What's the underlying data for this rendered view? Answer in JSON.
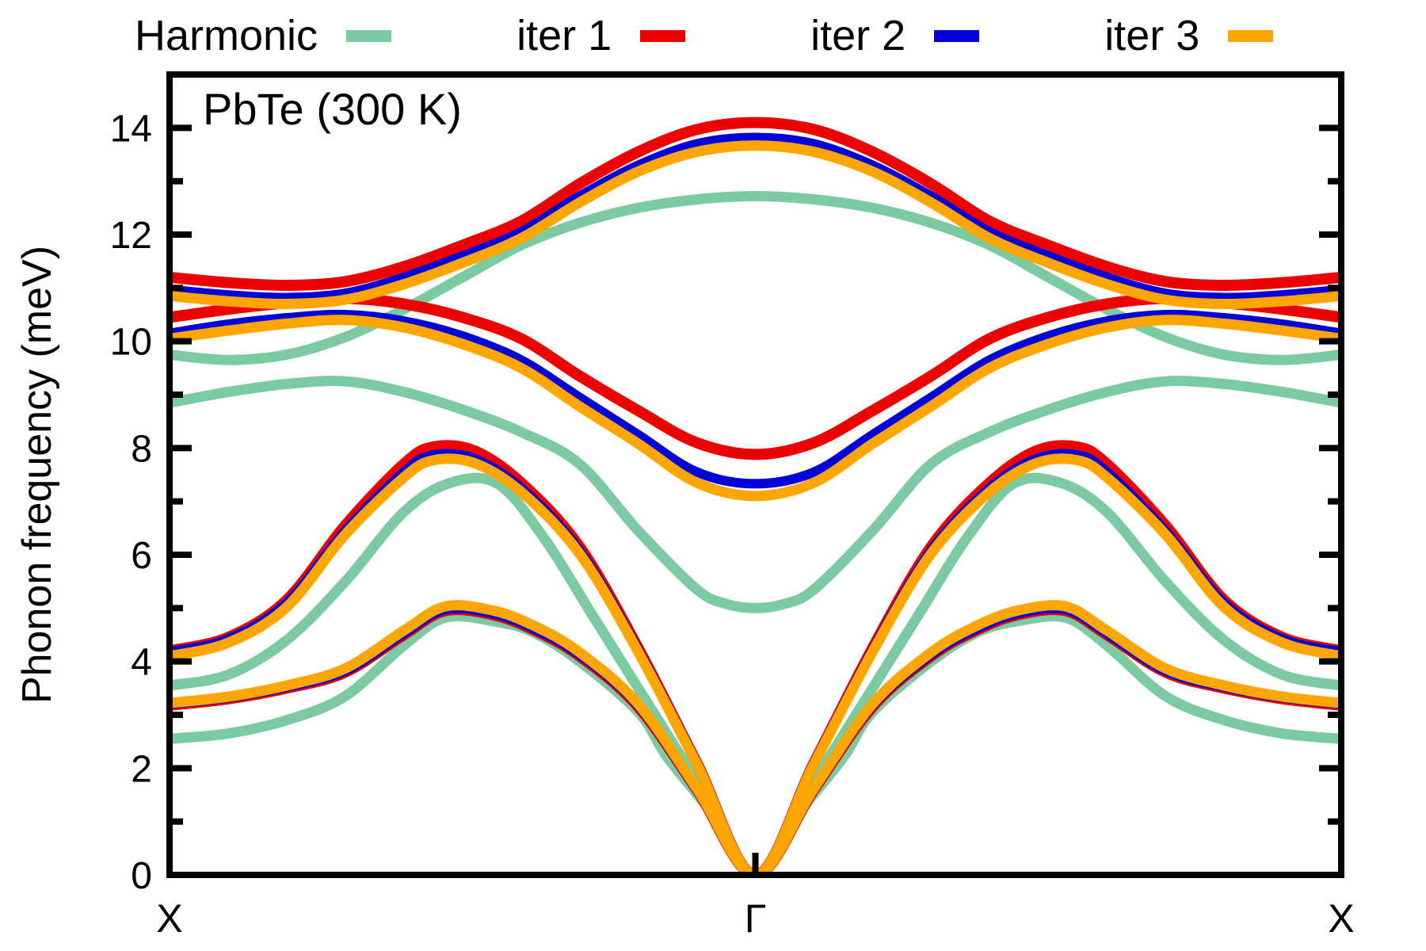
{
  "title": "PbTe (300 K)",
  "legend": {
    "items": [
      {
        "label": "Harmonic",
        "color": "#7ccaa1"
      },
      {
        "label": "iter 1",
        "color": "#ee0000"
      },
      {
        "label": "iter 2",
        "color": "#0000d9"
      },
      {
        "label": "iter 3",
        "color": "#ffa500"
      }
    ]
  },
  "axes": {
    "y": {
      "label": "Phonon frequency (meV)",
      "min": 0,
      "max": 15,
      "major_ticks": [
        0,
        2,
        4,
        6,
        8,
        10,
        12,
        14
      ],
      "minor_ticks": [
        1,
        3,
        5,
        7,
        9,
        11,
        13
      ]
    },
    "x": {
      "tick_labels": [
        "X",
        "Γ",
        "X"
      ]
    }
  },
  "chart_data": {
    "type": "line",
    "title": "PbTe (300 K)",
    "ylabel": "Phonon frequency (meV)",
    "ylim": [
      0,
      15
    ],
    "x_path": [
      "X",
      "Γ",
      "X"
    ],
    "path_note": "t=0 at left X, t=1 at Gamma, t=2 at right X; branches are mirror-symmetric about Gamma: value(2-t)=value(t); units meV",
    "grid": false,
    "legend_position": "top-outside",
    "series": [
      {
        "name": "Harmonic",
        "color": "#7ccaa1",
        "width": 13,
        "branches": {
          "TA": [
            [
              0,
              2.55
            ],
            [
              0.1,
              2.65
            ],
            [
              0.2,
              2.9
            ],
            [
              0.3,
              3.35
            ],
            [
              0.4,
              4.3
            ],
            [
              0.47,
              4.82
            ],
            [
              0.55,
              4.76
            ],
            [
              0.62,
              4.55
            ],
            [
              0.7,
              4.0
            ],
            [
              0.8,
              3.05
            ],
            [
              0.85,
              2.2
            ],
            [
              0.93,
              1.1
            ],
            [
              1,
              0
            ]
          ],
          "LA": [
            [
              0,
              3.55
            ],
            [
              0.1,
              3.75
            ],
            [
              0.2,
              4.4
            ],
            [
              0.3,
              5.5
            ],
            [
              0.4,
              6.8
            ],
            [
              0.48,
              7.35
            ],
            [
              0.56,
              7.33
            ],
            [
              0.64,
              6.3
            ],
            [
              0.72,
              4.9
            ],
            [
              0.8,
              3.5
            ],
            [
              0.9,
              1.75
            ],
            [
              1,
              0
            ]
          ],
          "TO": [
            [
              0,
              8.85
            ],
            [
              0.1,
              9.05
            ],
            [
              0.2,
              9.2
            ],
            [
              0.3,
              9.25
            ],
            [
              0.4,
              9.05
            ],
            [
              0.5,
              8.72
            ],
            [
              0.6,
              8.3
            ],
            [
              0.7,
              7.7
            ],
            [
              0.8,
              6.45
            ],
            [
              0.9,
              5.35
            ],
            [
              0.95,
              5.08
            ],
            [
              1,
              5.0
            ]
          ],
          "LO": [
            [
              0,
              9.75
            ],
            [
              0.1,
              9.65
            ],
            [
              0.2,
              9.75
            ],
            [
              0.3,
              10.08
            ],
            [
              0.4,
              10.6
            ],
            [
              0.5,
              11.2
            ],
            [
              0.6,
              11.8
            ],
            [
              0.7,
              12.22
            ],
            [
              0.8,
              12.5
            ],
            [
              0.9,
              12.66
            ],
            [
              1,
              12.72
            ]
          ]
        }
      },
      {
        "name": "iter 1",
        "color": "#ee0000",
        "width": 14,
        "branches": {
          "TA": [
            [
              0,
              3.18
            ],
            [
              0.1,
              3.3
            ],
            [
              0.2,
              3.5
            ],
            [
              0.3,
              3.8
            ],
            [
              0.4,
              4.5
            ],
            [
              0.47,
              4.95
            ],
            [
              0.55,
              4.88
            ],
            [
              0.62,
              4.6
            ],
            [
              0.7,
              4.1
            ],
            [
              0.8,
              3.15
            ],
            [
              0.9,
              1.6
            ],
            [
              1,
              0
            ]
          ],
          "LA": [
            [
              0,
              4.2
            ],
            [
              0.1,
              4.45
            ],
            [
              0.2,
              5.15
            ],
            [
              0.3,
              6.55
            ],
            [
              0.4,
              7.7
            ],
            [
              0.45,
              8.02
            ],
            [
              0.52,
              7.95
            ],
            [
              0.6,
              7.35
            ],
            [
              0.7,
              6.15
            ],
            [
              0.8,
              4.25
            ],
            [
              0.9,
              2.1
            ],
            [
              1,
              0
            ]
          ],
          "TO": [
            [
              0,
              10.45
            ],
            [
              0.1,
              10.6
            ],
            [
              0.2,
              10.72
            ],
            [
              0.3,
              10.8
            ],
            [
              0.4,
              10.7
            ],
            [
              0.5,
              10.45
            ],
            [
              0.6,
              10.05
            ],
            [
              0.7,
              9.35
            ],
            [
              0.8,
              8.7
            ],
            [
              0.9,
              8.1
            ],
            [
              1,
              7.88
            ]
          ],
          "LO": [
            [
              0,
              11.2
            ],
            [
              0.1,
              11.1
            ],
            [
              0.2,
              11.05
            ],
            [
              0.3,
              11.12
            ],
            [
              0.4,
              11.4
            ],
            [
              0.5,
              11.8
            ],
            [
              0.6,
              12.25
            ],
            [
              0.7,
              12.95
            ],
            [
              0.8,
              13.55
            ],
            [
              0.9,
              13.97
            ],
            [
              1,
              14.1
            ]
          ]
        }
      },
      {
        "name": "iter 2",
        "color": "#0000d9",
        "width": 12,
        "branches": {
          "TA": [
            [
              0,
              3.2
            ],
            [
              0.1,
              3.32
            ],
            [
              0.2,
              3.52
            ],
            [
              0.3,
              3.82
            ],
            [
              0.4,
              4.52
            ],
            [
              0.47,
              4.97
            ],
            [
              0.55,
              4.9
            ],
            [
              0.62,
              4.62
            ],
            [
              0.7,
              4.12
            ],
            [
              0.8,
              3.17
            ],
            [
              0.9,
              1.6
            ],
            [
              1,
              0
            ]
          ],
          "LA": [
            [
              0,
              4.18
            ],
            [
              0.1,
              4.42
            ],
            [
              0.2,
              5.1
            ],
            [
              0.3,
              6.45
            ],
            [
              0.4,
              7.55
            ],
            [
              0.45,
              7.87
            ],
            [
              0.52,
              7.8
            ],
            [
              0.6,
              7.25
            ],
            [
              0.7,
              6.08
            ],
            [
              0.8,
              4.22
            ],
            [
              0.9,
              2.1
            ],
            [
              1,
              0
            ]
          ],
          "TO": [
            [
              0,
              10.15
            ],
            [
              0.1,
              10.32
            ],
            [
              0.2,
              10.44
            ],
            [
              0.3,
              10.5
            ],
            [
              0.4,
              10.38
            ],
            [
              0.5,
              10.1
            ],
            [
              0.6,
              9.65
            ],
            [
              0.7,
              8.95
            ],
            [
              0.8,
              8.25
            ],
            [
              0.9,
              7.55
            ],
            [
              1,
              7.33
            ]
          ],
          "LO": [
            [
              0,
              10.97
            ],
            [
              0.1,
              10.87
            ],
            [
              0.2,
              10.82
            ],
            [
              0.3,
              10.9
            ],
            [
              0.4,
              11.2
            ],
            [
              0.5,
              11.6
            ],
            [
              0.6,
              12.05
            ],
            [
              0.7,
              12.72
            ],
            [
              0.8,
              13.3
            ],
            [
              0.9,
              13.7
            ],
            [
              1,
              13.82
            ]
          ]
        }
      },
      {
        "name": "iter 3",
        "color": "#ffa500",
        "width": 13,
        "branches": {
          "TA": [
            [
              0,
              3.22
            ],
            [
              0.1,
              3.34
            ],
            [
              0.2,
              3.55
            ],
            [
              0.3,
              3.87
            ],
            [
              0.4,
              4.58
            ],
            [
              0.47,
              5.03
            ],
            [
              0.55,
              4.96
            ],
            [
              0.62,
              4.68
            ],
            [
              0.7,
              4.17
            ],
            [
              0.8,
              3.2
            ],
            [
              0.9,
              1.62
            ],
            [
              1,
              0
            ]
          ],
          "LA": [
            [
              0,
              4.1
            ],
            [
              0.1,
              4.35
            ],
            [
              0.2,
              5.02
            ],
            [
              0.3,
              6.38
            ],
            [
              0.4,
              7.45
            ],
            [
              0.45,
              7.77
            ],
            [
              0.52,
              7.72
            ],
            [
              0.6,
              7.18
            ],
            [
              0.7,
              6.02
            ],
            [
              0.8,
              4.18
            ],
            [
              0.9,
              2.08
            ],
            [
              1,
              0
            ]
          ],
          "TO": [
            [
              0,
              10.05
            ],
            [
              0.1,
              10.2
            ],
            [
              0.2,
              10.33
            ],
            [
              0.3,
              10.4
            ],
            [
              0.4,
              10.26
            ],
            [
              0.5,
              9.95
            ],
            [
              0.6,
              9.5
            ],
            [
              0.7,
              8.78
            ],
            [
              0.8,
              8.08
            ],
            [
              0.9,
              7.35
            ],
            [
              1,
              7.1
            ]
          ],
          "LO": [
            [
              0,
              10.85
            ],
            [
              0.1,
              10.75
            ],
            [
              0.2,
              10.7
            ],
            [
              0.3,
              10.78
            ],
            [
              0.4,
              11.07
            ],
            [
              0.5,
              11.47
            ],
            [
              0.6,
              11.93
            ],
            [
              0.7,
              12.6
            ],
            [
              0.8,
              13.18
            ],
            [
              0.9,
              13.55
            ],
            [
              1,
              13.67
            ]
          ]
        }
      }
    ]
  }
}
